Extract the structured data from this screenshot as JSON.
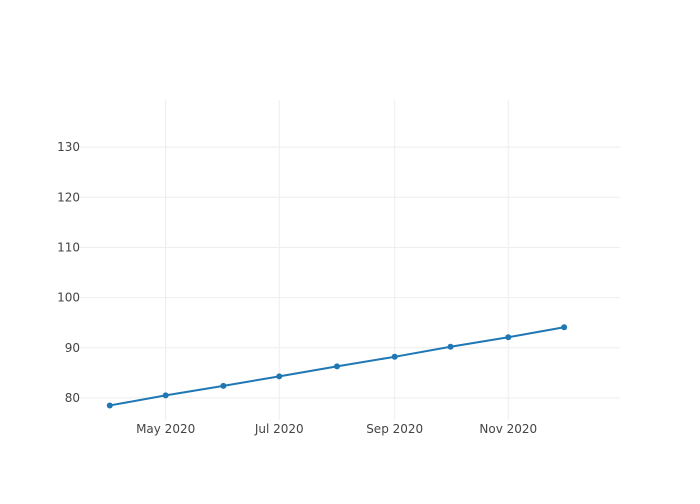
{
  "chart_data": {
    "type": "line",
    "title": "",
    "xlabel": "",
    "ylabel": "",
    "x_axis_type": "date",
    "xlim": [
      "2020-03-16",
      "2020-12-31"
    ],
    "ylim": [
      75.6,
      139.4
    ],
    "x_ticks": [
      {
        "date": "2020-05-01",
        "label": "May 2020"
      },
      {
        "date": "2020-07-01",
        "label": "Jul 2020"
      },
      {
        "date": "2020-09-01",
        "label": "Sep 2020"
      },
      {
        "date": "2020-11-01",
        "label": "Nov 2020"
      }
    ],
    "y_ticks": [
      80,
      90,
      100,
      110,
      120,
      130
    ],
    "grid": true,
    "legend": false,
    "series": [
      {
        "color": "#1f77b4",
        "mode": "lines+markers",
        "points": [
          {
            "x": "2020-04-01",
            "y": 78.5
          },
          {
            "x": "2020-05-01",
            "y": 80.5
          },
          {
            "x": "2020-06-01",
            "y": 82.4
          },
          {
            "x": "2020-07-01",
            "y": 84.3
          },
          {
            "x": "2020-08-01",
            "y": 86.3
          },
          {
            "x": "2020-09-01",
            "y": 88.2
          },
          {
            "x": "2020-10-01",
            "y": 90.2
          },
          {
            "x": "2020-11-01",
            "y": 92.1
          },
          {
            "x": "2020-12-01",
            "y": 94.1
          }
        ]
      }
    ],
    "colors": {
      "grid": "#eeeeee",
      "tick_label": "#444444"
    }
  }
}
